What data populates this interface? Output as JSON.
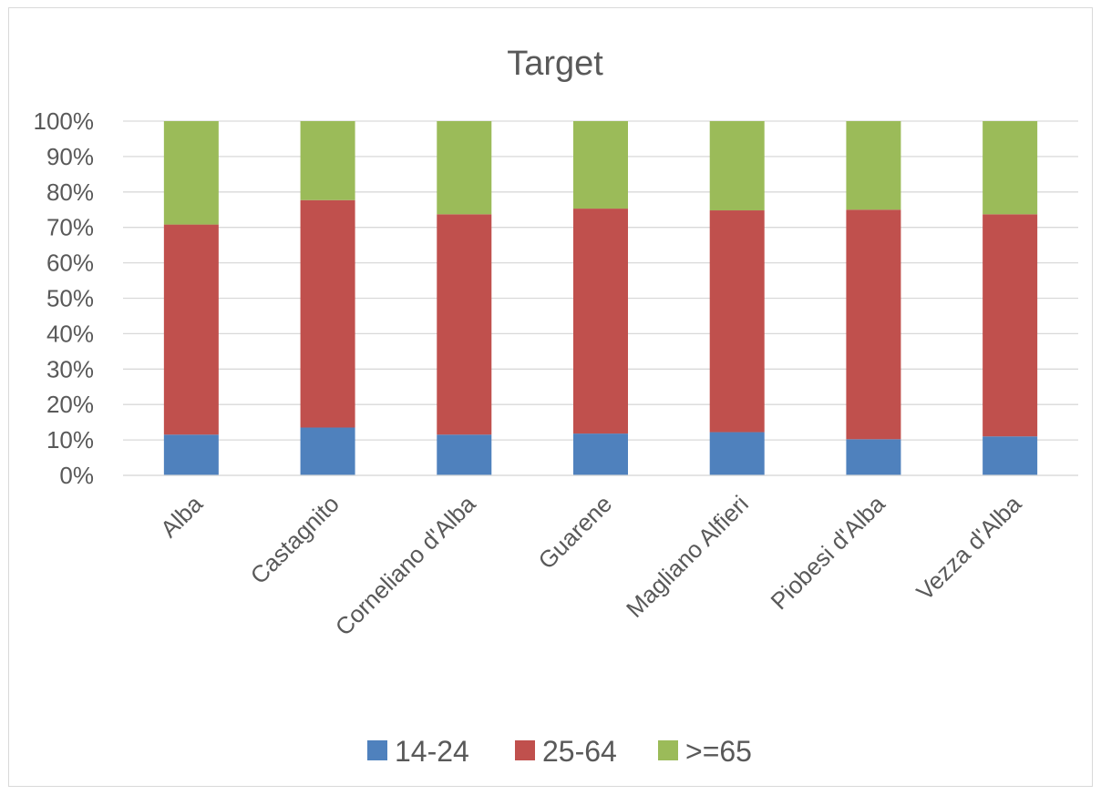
{
  "chart_data": {
    "type": "bar",
    "stacked": "percent",
    "title": "Target",
    "categories": [
      "Alba",
      "Castagnito",
      "Corneliano d'Alba",
      "Guarene",
      "Magliano Alfieri",
      "Piobesi d'Alba",
      "Vezza d'Alba"
    ],
    "series": [
      {
        "name": "14-24",
        "color": "#4f81bd",
        "values": [
          11.5,
          13.5,
          11.5,
          11.8,
          12.2,
          10.2,
          11.0
        ]
      },
      {
        "name": "25-64",
        "color": "#c0504d",
        "values": [
          59.3,
          64.2,
          62.2,
          63.5,
          62.6,
          64.8,
          62.7
        ]
      },
      {
        "name": ">=65",
        "color": "#9bbb59",
        "values": [
          29.2,
          22.3,
          26.3,
          24.7,
          25.2,
          25.0,
          26.3
        ]
      }
    ],
    "y_ticks": [
      "0%",
      "10%",
      "20%",
      "30%",
      "40%",
      "50%",
      "60%",
      "70%",
      "80%",
      "90%",
      "100%"
    ],
    "ylim": [
      0,
      100
    ],
    "grid": true,
    "legend_position": "bottom"
  }
}
